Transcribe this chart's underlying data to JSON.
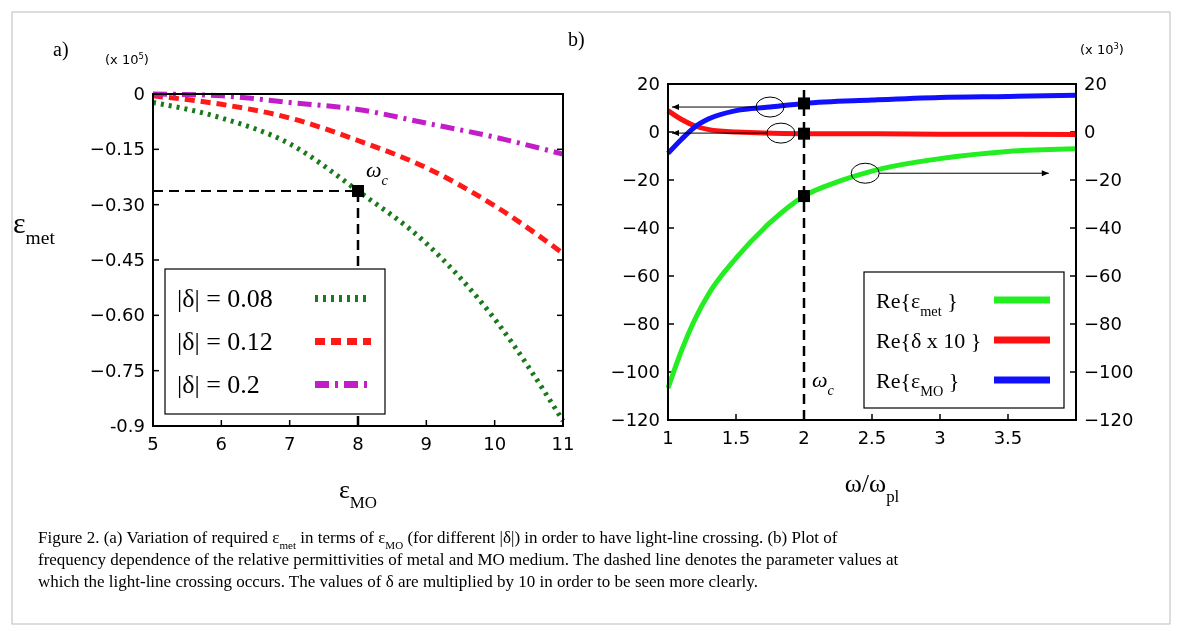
{
  "chart_data": [
    {
      "type": "line",
      "title": "a)",
      "xlabel": "ε$_{MO}$",
      "ylabel": "ε$_{met}$",
      "xlim": [
        5,
        11
      ],
      "xticks": [
        5,
        6,
        7,
        8,
        9,
        10,
        11
      ],
      "ylim": [
        -0.9,
        0
      ],
      "yticks": [
        0,
        {
          "value": -0.15,
          "label": "−0.15"
        },
        {
          "value": -0.3,
          "label": "−0.30"
        },
        {
          "value": -0.45,
          "label": "−0.45"
        },
        {
          "value": -0.6,
          "label": "−0.60"
        },
        {
          "value": -0.75,
          "label": "−0.75"
        },
        -0.9
      ],
      "grid": false,
      "legend": "bottom left",
      "x": [
        5,
        6,
        7,
        8,
        9,
        10,
        11
      ],
      "series": [
        {
          "name": "|δ| = 0.08",
          "color": "#1a7a1a",
          "line_style": "dotted",
          "values": [
            -0.023,
            -0.065,
            -0.135,
            -0.263,
            -0.405,
            -0.61,
            -0.886
          ]
        },
        {
          "name": "|δ| = 0.12",
          "color": "#ff1a1a",
          "line_style": "dashed",
          "values": [
            -0.005,
            -0.028,
            -0.065,
            -0.126,
            -0.2,
            -0.303,
            -0.432
          ]
        },
        {
          "name": "|δ| = 0.2",
          "color": "#c21ec8",
          "line_style": "dashdot",
          "values": [
            0,
            -0.005,
            -0.023,
            -0.042,
            -0.079,
            -0.117,
            -0.163
          ]
        },
        {
          "type": "scatter",
          "marker": "square",
          "color": "#000000",
          "x": [
            8
          ],
          "values": [
            -0.263
          ]
        }
      ],
      "ref_lines": [
        {
          "axis": "x",
          "value": 8,
          "line_style": "dashed",
          "color": "#000000"
        },
        {
          "axis": "y",
          "value": -0.263,
          "line_style": "dashed",
          "color": "#000000"
        }
      ],
      "annotations": [
        "(x 10$^{5}$)",
        {
          "text": "ω$_{c}$",
          "x": 8,
          "y": -0.263
        }
      ]
    },
    {
      "type": "line",
      "title": "b)",
      "xlabel": "ω/ω$_{pl}$",
      "xlim": [
        1,
        4
      ],
      "xticks": [
        1,
        1.5,
        2,
        2.5,
        3,
        3.5
      ],
      "ylim": [
        -120,
        20
      ],
      "yticks": [
        {
          "value": -120,
          "label": "−120"
        },
        {
          "value": -100,
          "label": "−100"
        },
        {
          "value": -80,
          "label": "−80"
        },
        {
          "value": -60,
          "label": "−60"
        },
        {
          "value": -40,
          "label": "−40"
        },
        {
          "value": -20,
          "label": "−20"
        },
        0,
        20
      ],
      "y2lim": [
        -120,
        20
      ],
      "y2ticks": [
        {
          "value": -120,
          "label": "−120"
        },
        {
          "value": -100,
          "label": "−100"
        },
        {
          "value": -80,
          "label": "−80"
        },
        {
          "value": -60,
          "label": "−60"
        },
        {
          "value": -40,
          "label": "−40"
        },
        {
          "value": -20,
          "label": "−20"
        },
        0,
        20
      ],
      "grid": false,
      "legend": "bottom right",
      "series": [
        {
          "name": "Re{ε$_{met}$ }",
          "color": "#22ee22",
          "axis": "y2",
          "x": [
            1,
            1.1,
            1.2,
            1.3,
            1.5,
            1.75,
            2,
            2.25,
            2.5,
            3,
            3.5,
            4
          ],
          "values": [
            -106.7,
            -91,
            -77.8,
            -67.4,
            -52.6,
            -37.8,
            -26.7,
            -20.7,
            -16.3,
            -11.1,
            -8.1,
            -7
          ]
        },
        {
          "name": "Re{δ x 10 }",
          "color": "#ff1010",
          "x": [
            1,
            1.1,
            1.2,
            1.3,
            1.5,
            2,
            2.5,
            3,
            4
          ],
          "values": [
            8.9,
            5.2,
            2.5,
            1,
            0,
            -0.7,
            -0.7,
            -0.9,
            -1
          ]
        },
        {
          "name": "Re{ε$_{MO}$ }",
          "color": "#1010ff",
          "x": [
            1,
            1.1,
            1.2,
            1.3,
            1.5,
            1.75,
            2,
            2.5,
            3,
            3.5,
            4
          ],
          "values": [
            -8.9,
            -3,
            2.2,
            5.5,
            8.9,
            10.4,
            11.9,
            13.3,
            14.4,
            14.8,
            15.3
          ]
        },
        {
          "type": "scatter",
          "marker": "square",
          "color": "#000000",
          "x": [
            2,
            2,
            2
          ],
          "values": [
            11.9,
            -0.7,
            -26.7
          ]
        }
      ],
      "ref_lines": [
        {
          "axis": "x",
          "value": 2,
          "line_style": "dashed",
          "color": "#000000"
        }
      ],
      "annotations": [
        "(x 10$^{3}$)",
        {
          "text": "ω$_{c}$",
          "x": 2,
          "y": -112
        },
        "Figure 2. (a) Variation of required ε$_{met}$ in terms of ε$_{MO}$ (for different |δ|) in order to have light-line crossing. (b) Plot of frequency dependence of the relative permittivities of metal and MO medium. The dashed line denotes the parameter values at which the light-line crossing occurs. The values of δ are multiplied by 10 in order to be seen more clearly."
      ]
    }
  ]
}
